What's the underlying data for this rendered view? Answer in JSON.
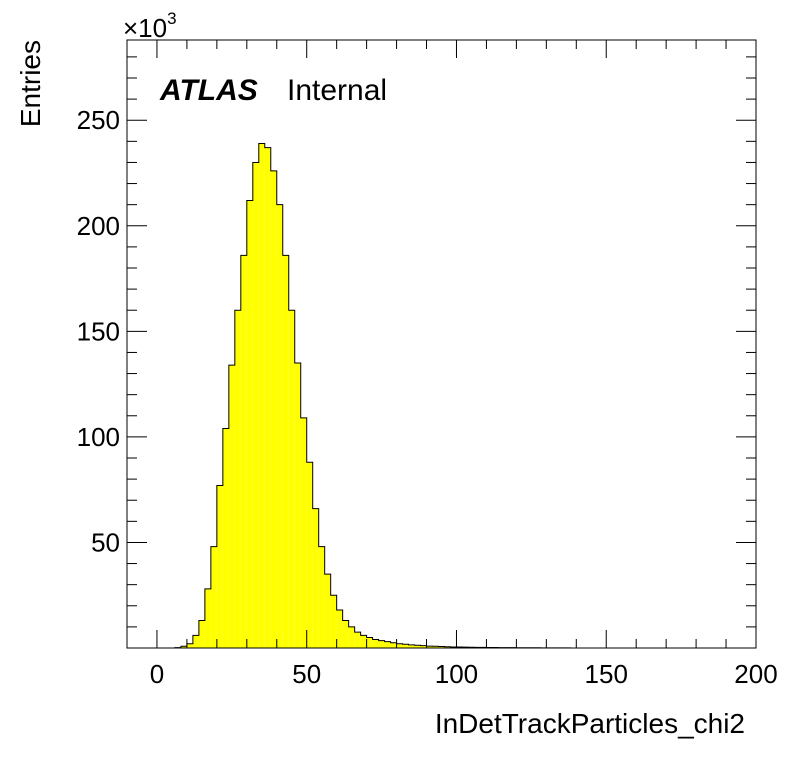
{
  "chart_data": {
    "type": "bar",
    "subtype": "histogram",
    "title": "",
    "xlabel": "InDetTrackParticles_chi2",
    "ylabel": "Entries",
    "y_multiplier_label": {
      "base": "×10",
      "exponent": "3"
    },
    "xlim": [
      -10,
      200
    ],
    "ylim": [
      0,
      288
    ],
    "x_ticks": [
      0,
      50,
      100,
      150,
      200
    ],
    "y_ticks": [
      50,
      100,
      150,
      200,
      250
    ],
    "x_tick_labels": [
      "0",
      "50",
      "100",
      "150",
      "200"
    ],
    "y_tick_labels": [
      "50",
      "100",
      "150",
      "200",
      "250"
    ],
    "grid": false,
    "bin_width": 2,
    "fill_color": "#ffff00",
    "edge_color": "#000000",
    "bin_lows": [
      0,
      2,
      4,
      6,
      8,
      10,
      12,
      14,
      16,
      18,
      20,
      22,
      24,
      26,
      28,
      30,
      32,
      34,
      36,
      38,
      40,
      42,
      44,
      46,
      48,
      50,
      52,
      54,
      56,
      58,
      60,
      62,
      64,
      66,
      68,
      70,
      72,
      74,
      76,
      78,
      80,
      82,
      84,
      86,
      88,
      90,
      92,
      94,
      96,
      98,
      100,
      102,
      104,
      106,
      108,
      110,
      112,
      114,
      116,
      118,
      120,
      122,
      124,
      126,
      128,
      130,
      132,
      134,
      136,
      138,
      140,
      142,
      144,
      146,
      148,
      150,
      152,
      154,
      156,
      158,
      160,
      162,
      164,
      166,
      168,
      170,
      172,
      174,
      176,
      178,
      180,
      182,
      184,
      186,
      188,
      190,
      192,
      194,
      196,
      198
    ],
    "values": [
      0,
      0,
      0,
      0.2,
      0.8,
      2,
      6,
      13,
      28,
      48,
      77,
      104,
      134,
      160,
      186,
      212,
      230,
      239,
      237,
      226,
      210,
      186,
      160,
      135,
      109,
      88,
      66,
      48,
      35,
      25,
      18,
      13,
      10,
      7.5,
      6,
      5,
      4,
      3.5,
      3,
      2.5,
      2,
      1.8,
      1.5,
      1.3,
      1.1,
      0.9,
      0.8,
      0.7,
      0.6,
      0.5,
      0.45,
      0.4,
      0.35,
      0.3,
      0.28,
      0.25,
      0.22,
      0.2,
      0.18,
      0.16,
      0.14,
      0.12,
      0.1,
      0.09,
      0.08,
      0.07,
      0.06,
      0.05,
      0.04,
      0,
      0,
      0,
      0,
      0,
      0,
      0,
      0,
      0,
      0,
      0,
      0,
      0,
      0,
      0,
      0,
      0,
      0,
      0,
      0,
      0,
      0,
      0,
      0,
      0,
      0,
      0,
      0,
      0,
      0,
      0
    ]
  },
  "annotation": {
    "atlas_label": "ATLAS",
    "internal_label": "Internal"
  }
}
